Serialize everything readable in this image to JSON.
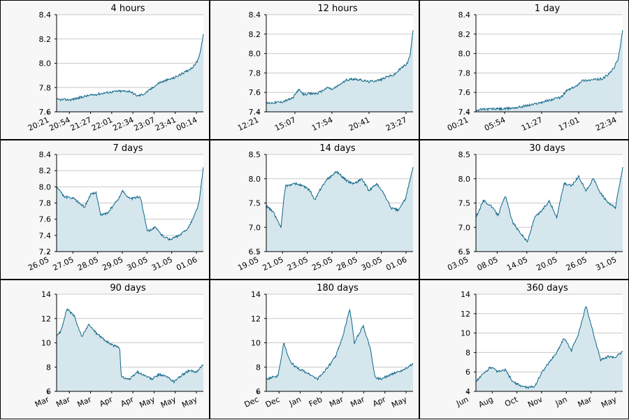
{
  "chart_data": [
    {
      "type": "area",
      "title": "4 hours",
      "x_ticks": [
        "20:21",
        "20:54",
        "21:27",
        "22:01",
        "22:34",
        "23:07",
        "23:41",
        "00:14"
      ],
      "y_ticks": [
        "7.6",
        "7.8",
        "8.0",
        "8.2",
        "8.4"
      ],
      "ylim": [
        7.6,
        8.4
      ],
      "grid": true,
      "x": [
        0,
        0.1,
        0.2,
        0.3,
        0.35,
        0.42,
        0.5,
        0.55,
        0.6,
        0.7,
        0.8,
        0.88,
        0.93,
        0.96,
        0.98,
        1.0
      ],
      "y": [
        7.7,
        7.7,
        7.73,
        7.75,
        7.76,
        7.77,
        7.77,
        7.73,
        7.75,
        7.84,
        7.88,
        7.93,
        7.97,
        8.02,
        8.1,
        8.24
      ]
    },
    {
      "type": "area",
      "title": "12 hours",
      "x_ticks": [
        "12:21",
        "15:07",
        "17:54",
        "20:41",
        "23:27"
      ],
      "y_ticks": [
        "7.4",
        "7.6",
        "7.8",
        "8.0",
        "8.2",
        "8.4"
      ],
      "ylim": [
        7.4,
        8.4
      ],
      "grid": true,
      "x": [
        0,
        0.1,
        0.18,
        0.22,
        0.25,
        0.35,
        0.42,
        0.45,
        0.5,
        0.55,
        0.6,
        0.7,
        0.78,
        0.82,
        0.87,
        0.92,
        0.96,
        0.98,
        1.0
      ],
      "y": [
        7.49,
        7.5,
        7.54,
        7.63,
        7.58,
        7.59,
        7.65,
        7.63,
        7.68,
        7.73,
        7.74,
        7.71,
        7.73,
        7.76,
        7.78,
        7.85,
        7.9,
        7.98,
        8.24
      ]
    },
    {
      "type": "area",
      "title": "1 day",
      "x_ticks": [
        "00:21",
        "05:54",
        "11:27",
        "17:01",
        "22:34"
      ],
      "y_ticks": [
        "7.4",
        "7.6",
        "7.8",
        "8.0",
        "8.2",
        "8.4"
      ],
      "ylim": [
        7.4,
        8.4
      ],
      "grid": true,
      "x": [
        0,
        0.1,
        0.2,
        0.3,
        0.4,
        0.5,
        0.58,
        0.62,
        0.68,
        0.72,
        0.8,
        0.86,
        0.9,
        0.94,
        0.97,
        1.0
      ],
      "y": [
        7.42,
        7.43,
        7.43,
        7.45,
        7.48,
        7.52,
        7.55,
        7.62,
        7.66,
        7.72,
        7.73,
        7.74,
        7.78,
        7.85,
        7.95,
        8.24
      ]
    },
    {
      "type": "area",
      "title": "7 days",
      "x_ticks": [
        "26.05",
        "27.05",
        "28.05",
        "29.05",
        "30.05",
        "31.05",
        "01.06"
      ],
      "y_ticks": [
        "7.2",
        "7.4",
        "7.6",
        "7.8",
        "8.0",
        "8.2",
        "8.4"
      ],
      "ylim": [
        7.2,
        8.4
      ],
      "grid": true,
      "x": [
        0,
        0.05,
        0.12,
        0.19,
        0.23,
        0.27,
        0.3,
        0.35,
        0.42,
        0.45,
        0.5,
        0.57,
        0.62,
        0.67,
        0.72,
        0.77,
        0.84,
        0.9,
        0.94,
        0.97,
        1.0
      ],
      "y": [
        8.0,
        7.88,
        7.85,
        7.75,
        7.9,
        7.93,
        7.65,
        7.68,
        7.85,
        7.95,
        7.85,
        7.88,
        7.45,
        7.5,
        7.4,
        7.35,
        7.4,
        7.5,
        7.65,
        7.8,
        8.24
      ]
    },
    {
      "type": "area",
      "title": "14 days",
      "x_ticks": [
        "19.05",
        "21.05",
        "23.05",
        "25.05",
        "28.05",
        "30.05",
        "01.06"
      ],
      "y_ticks": [
        "6.5",
        "7.0",
        "7.5",
        "8.0",
        "8.5"
      ],
      "ylim": [
        6.5,
        8.5
      ],
      "grid": true,
      "x": [
        0,
        0.05,
        0.1,
        0.13,
        0.2,
        0.25,
        0.3,
        0.33,
        0.38,
        0.42,
        0.48,
        0.55,
        0.6,
        0.65,
        0.7,
        0.75,
        0.8,
        0.85,
        0.9,
        0.95,
        1.0
      ],
      "y": [
        7.45,
        7.3,
        7.0,
        7.85,
        7.9,
        7.85,
        7.75,
        7.55,
        7.85,
        8.0,
        8.15,
        7.95,
        7.9,
        8.0,
        7.75,
        7.9,
        7.7,
        7.4,
        7.35,
        7.6,
        8.24
      ]
    },
    {
      "type": "area",
      "title": "30 days",
      "x_ticks": [
        "03.05",
        "08.05",
        "14.05",
        "20.05",
        "26.05",
        "31.05"
      ],
      "y_ticks": [
        "6.5",
        "7.0",
        "7.5",
        "8.0",
        "8.5"
      ],
      "ylim": [
        6.5,
        8.5
      ],
      "grid": true,
      "x": [
        0,
        0.05,
        0.1,
        0.15,
        0.2,
        0.25,
        0.3,
        0.35,
        0.4,
        0.45,
        0.5,
        0.55,
        0.6,
        0.65,
        0.7,
        0.75,
        0.8,
        0.85,
        0.9,
        0.95,
        1.0
      ],
      "y": [
        7.2,
        7.55,
        7.45,
        7.25,
        7.65,
        7.1,
        6.9,
        6.7,
        7.2,
        7.35,
        7.55,
        7.2,
        7.9,
        7.85,
        8.05,
        7.75,
        8.0,
        7.7,
        7.5,
        7.4,
        8.24
      ]
    },
    {
      "type": "area",
      "title": "90 days",
      "x_ticks": [
        "Mar",
        "Mar",
        "Mar",
        "Apr",
        "Apr",
        "May",
        "May",
        "May"
      ],
      "y_ticks": [
        "6",
        "8",
        "10",
        "12",
        "14"
      ],
      "ylim": [
        6,
        14
      ],
      "grid": true,
      "x": [
        0,
        0.03,
        0.07,
        0.12,
        0.17,
        0.22,
        0.27,
        0.33,
        0.38,
        0.43,
        0.44,
        0.5,
        0.55,
        0.6,
        0.65,
        0.7,
        0.75,
        0.8,
        0.85,
        0.9,
        0.95,
        1.0
      ],
      "y": [
        10.5,
        11.0,
        12.8,
        12.2,
        10.5,
        11.5,
        10.8,
        10.2,
        9.8,
        9.6,
        7.2,
        7.0,
        7.6,
        7.3,
        7.0,
        7.4,
        7.2,
        6.8,
        7.3,
        7.7,
        7.6,
        8.2
      ]
    },
    {
      "type": "area",
      "title": "180 days",
      "x_ticks": [
        "Dec",
        "Dec",
        "Jan",
        "Feb",
        "Mar",
        "Mar",
        "Apr",
        "May"
      ],
      "y_ticks": [
        "6",
        "8",
        "10",
        "12",
        "14"
      ],
      "ylim": [
        6,
        14
      ],
      "grid": true,
      "x": [
        0,
        0.08,
        0.12,
        0.16,
        0.2,
        0.28,
        0.35,
        0.42,
        0.47,
        0.52,
        0.57,
        0.6,
        0.66,
        0.71,
        0.74,
        0.78,
        0.85,
        0.92,
        1.0
      ],
      "y": [
        7.0,
        7.3,
        10.0,
        8.5,
        8.0,
        7.5,
        7.0,
        8.0,
        8.8,
        10.5,
        12.8,
        10.0,
        11.4,
        9.5,
        7.2,
        7.0,
        7.4,
        7.7,
        8.24
      ]
    },
    {
      "type": "area",
      "title": "360 days",
      "x_ticks": [
        "Jun",
        "Aug",
        "Oct",
        "Nov",
        "Jan",
        "Mar",
        "May"
      ],
      "y_ticks": [
        "4",
        "6",
        "8",
        "10",
        "12",
        "14"
      ],
      "ylim": [
        4,
        14
      ],
      "grid": true,
      "x": [
        0,
        0.05,
        0.1,
        0.15,
        0.2,
        0.25,
        0.3,
        0.35,
        0.4,
        0.45,
        0.5,
        0.55,
        0.6,
        0.65,
        0.7,
        0.75,
        0.8,
        0.85,
        0.9,
        0.95,
        1.0
      ],
      "y": [
        5.0,
        5.8,
        6.5,
        6.0,
        6.2,
        5.0,
        4.6,
        4.4,
        4.5,
        6.0,
        7.0,
        8.0,
        9.5,
        8.2,
        10.0,
        12.8,
        10.0,
        7.2,
        7.6,
        7.5,
        8.1
      ]
    }
  ]
}
